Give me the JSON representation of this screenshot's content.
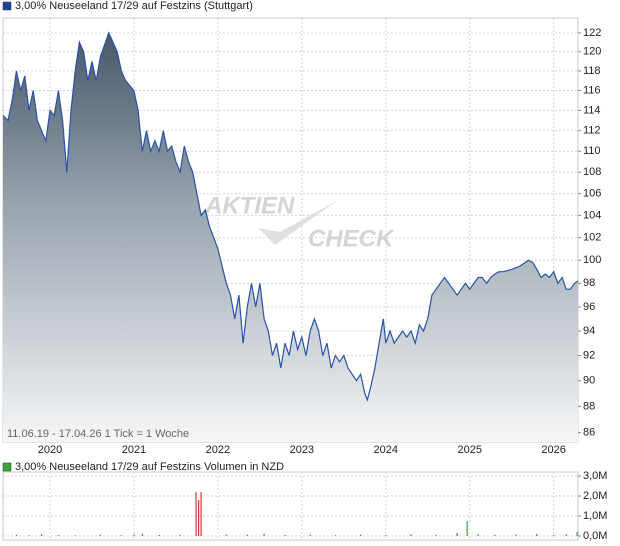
{
  "chart_data": [
    {
      "type": "area",
      "title": "3,00% Neuseeland 17/29 auf Festzins (Stuttgart)",
      "color": "#2a52a8",
      "legend_color": "#1f3f8f",
      "footnote": "11.06.19 - 17.04.26   1 Tick = 1 Woche",
      "watermark": [
        "AKTIEN",
        "CHECK"
      ],
      "log_scale": true,
      "grid": true,
      "xlim": [
        2019.44,
        2026.29
      ],
      "xticks": [
        2020,
        2021,
        2022,
        2023,
        2024,
        2025,
        2026
      ],
      "ylim": [
        85.3,
        123.6
      ],
      "yticks": [
        86,
        88,
        90,
        92,
        94,
        96,
        98,
        100,
        102,
        104,
        106,
        108,
        110,
        112,
        114,
        116,
        118,
        120,
        122
      ],
      "x": [
        2019.44,
        2019.5,
        2019.55,
        2019.6,
        2019.65,
        2019.7,
        2019.75,
        2019.8,
        2019.85,
        2019.9,
        2019.95,
        2020.0,
        2020.05,
        2020.1,
        2020.15,
        2020.2,
        2020.25,
        2020.3,
        2020.35,
        2020.4,
        2020.45,
        2020.5,
        2020.55,
        2020.6,
        2020.7,
        2020.75,
        2020.8,
        2020.85,
        2020.9,
        2020.95,
        2021.0,
        2021.05,
        2021.1,
        2021.15,
        2021.2,
        2021.25,
        2021.3,
        2021.35,
        2021.4,
        2021.45,
        2021.5,
        2021.55,
        2021.6,
        2021.65,
        2021.7,
        2021.75,
        2021.8,
        2021.85,
        2021.9,
        2021.95,
        2022.0,
        2022.05,
        2022.1,
        2022.15,
        2022.2,
        2022.25,
        2022.3,
        2022.35,
        2022.4,
        2022.45,
        2022.5,
        2022.55,
        2022.6,
        2022.65,
        2022.7,
        2022.75,
        2022.8,
        2022.85,
        2022.9,
        2022.95,
        2023.0,
        2023.05,
        2023.1,
        2023.15,
        2023.2,
        2023.25,
        2023.3,
        2023.35,
        2023.4,
        2023.45,
        2023.5,
        2023.55,
        2023.6,
        2023.65,
        2023.7,
        2023.75,
        2023.78,
        2023.82,
        2023.87,
        2023.92,
        2023.97,
        2024.0,
        2024.05,
        2024.1,
        2024.15,
        2024.2,
        2024.25,
        2024.3,
        2024.35,
        2024.4,
        2024.45,
        2024.5,
        2024.55,
        2024.6,
        2024.65,
        2024.7,
        2024.75,
        2024.8,
        2024.85,
        2024.9,
        2024.95,
        2025.0,
        2025.05,
        2025.1,
        2025.15,
        2025.2,
        2025.25,
        2025.3,
        2025.35,
        2025.4,
        2025.5,
        2025.6,
        2025.7,
        2025.75,
        2025.8,
        2025.85,
        2025.9,
        2025.95,
        2026.0,
        2026.05,
        2026.1,
        2026.15,
        2026.2,
        2026.25,
        2026.29
      ],
      "values": [
        113.5,
        113,
        115,
        118,
        116,
        117.5,
        114,
        116,
        113,
        112,
        111,
        114,
        113.5,
        116,
        113,
        108,
        114,
        118,
        121,
        120,
        117,
        119,
        117,
        119.5,
        122,
        121,
        120,
        118,
        117,
        116.5,
        116,
        114,
        110,
        112,
        110,
        111,
        110,
        112,
        110,
        110.5,
        109,
        108,
        110.5,
        109,
        108,
        106,
        104,
        104.5,
        103,
        102,
        101,
        99.5,
        98,
        97,
        95,
        97,
        93,
        96,
        98,
        96,
        98,
        95,
        94,
        92,
        93,
        91,
        93,
        92,
        94,
        92.5,
        93.5,
        92,
        94,
        95,
        94,
        92,
        93,
        91,
        92,
        91.5,
        92,
        91,
        90.5,
        90,
        90.5,
        89,
        88.5,
        89.5,
        91,
        93,
        95,
        93,
        94,
        93,
        93.5,
        94,
        93.5,
        94,
        93,
        94.5,
        94,
        95,
        97,
        97.5,
        98,
        98.5,
        98,
        97.5,
        97,
        97.5,
        98,
        97.5,
        98,
        98.5,
        98.5,
        98,
        98.5,
        98.8,
        99,
        99,
        99.2,
        99.5,
        100,
        99.8,
        99.2,
        98.5,
        98.8,
        98.5,
        99,
        98,
        98.5,
        97.5,
        97.5,
        98,
        98.2
      ]
    },
    {
      "type": "bar",
      "title": "3,00% Neuseeland 17/29 auf Festzins Volumen in NZD",
      "legend_color": "#3aa33a",
      "grid": true,
      "xlim": [
        2019.44,
        2026.29
      ],
      "ylim": [
        0,
        3000000
      ],
      "yticks": [
        {
          "value": 0,
          "label": "0,0M"
        },
        {
          "value": 1000000,
          "label": "1,0M"
        },
        {
          "value": 2000000,
          "label": "2,0M"
        },
        {
          "value": 3000000,
          "label": "3,0M"
        }
      ],
      "x": [
        2019.6,
        2019.75,
        2019.9,
        2020.1,
        2020.3,
        2020.6,
        2020.85,
        2021.0,
        2021.1,
        2021.3,
        2021.55,
        2021.74,
        2021.77,
        2021.8,
        2022.1,
        2022.35,
        2022.55,
        2022.8,
        2023.1,
        2023.4,
        2023.7,
        2024.0,
        2024.3,
        2024.6,
        2024.85,
        2024.97,
        2025.1,
        2025.3,
        2025.55,
        2025.8,
        2026.0,
        2026.15,
        2026.28
      ],
      "values": [
        60000,
        40000,
        80000,
        50000,
        30000,
        60000,
        40000,
        70000,
        120000,
        50000,
        60000,
        2200000,
        1800000,
        2200000,
        80000,
        60000,
        120000,
        50000,
        70000,
        40000,
        60000,
        50000,
        80000,
        60000,
        150000,
        750000,
        90000,
        60000,
        70000,
        100000,
        60000,
        80000,
        200000
      ],
      "colors": [
        "#d03a3a",
        "#3aa33a",
        "#d03a3a",
        "#3aa33a",
        "#d03a3a",
        "#3aa33a",
        "#d03a3a",
        "#d03a3a",
        "#3aa33a",
        "#d03a3a",
        "#3aa33a",
        "#d03a3a",
        "#d03a3a",
        "#d03a3a",
        "#3aa33a",
        "#d03a3a",
        "#3aa33a",
        "#d03a3a",
        "#3aa33a",
        "#3aa33a",
        "#d03a3a",
        "#3aa33a",
        "#d03a3a",
        "#3aa33a",
        "#d03a3a",
        "#3aa33a",
        "#3aa33a",
        "#d03a3a",
        "#3aa33a",
        "#d03a3a",
        "#3aa33a",
        "#d03a3a",
        "#3aa33a"
      ]
    }
  ]
}
